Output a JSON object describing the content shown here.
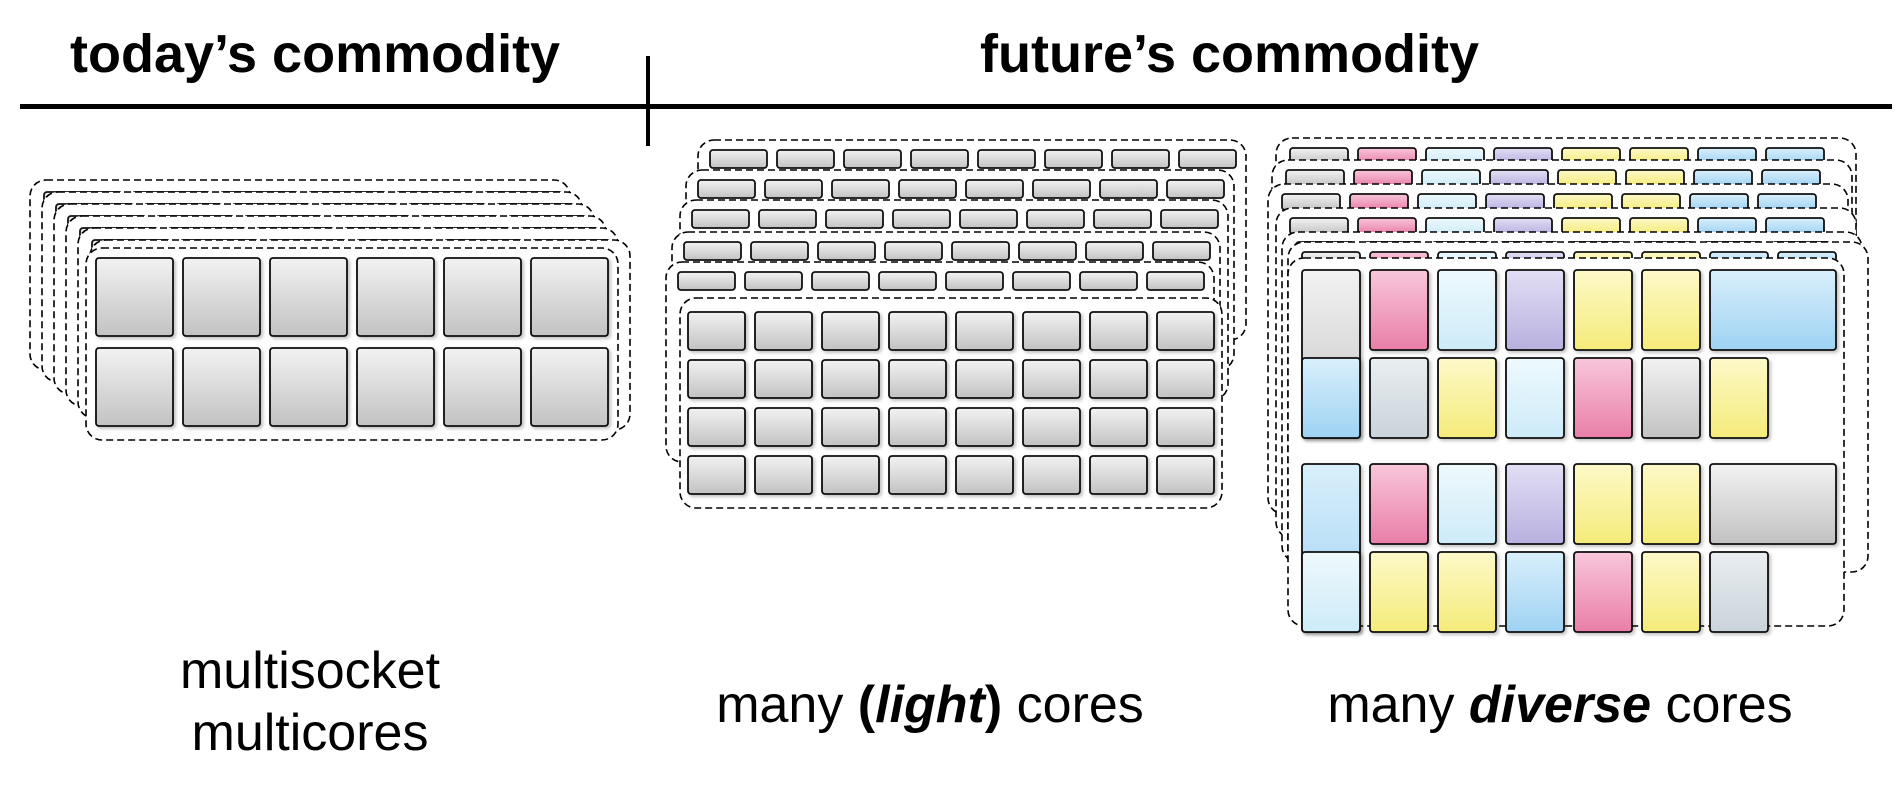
{
  "headers": {
    "today": "today’s commodity",
    "future": "future’s commodity"
  },
  "labels": {
    "multisocket_line1": "multisocket",
    "multisocket_line2": "multicores",
    "light_pre": "many ",
    "light_paren_open": "(",
    "light_word": "light",
    "light_paren_close": ")",
    "light_post": " cores",
    "diverse_pre": "many ",
    "diverse_word": "diverse",
    "diverse_post": " cores"
  },
  "colors": {
    "gray": "#c9c9c9",
    "pink": "#ee8fb4",
    "light_cyan": "#d6f0fa",
    "lavender": "#c6bfe6",
    "yellow": "#f7ee8a",
    "blue": "#a9d8f5",
    "silver": "#d3dbe1"
  },
  "diverse_grid": [
    [
      "gray-tall",
      "pink",
      "light_cyan",
      "lavender",
      "yellow",
      "yellow",
      "blue-wide"
    ],
    [
      "blue",
      "silver",
      "yellow",
      "light_cyan",
      "pink",
      "gray",
      "yellow"
    ],
    [
      "blue-tall",
      "pink",
      "light_cyan",
      "lavender",
      "yellow",
      "yellow",
      "gray-wide"
    ],
    [
      "light_cyan",
      "yellow",
      "yellow",
      "blue",
      "pink",
      "yellow",
      "silver"
    ]
  ]
}
